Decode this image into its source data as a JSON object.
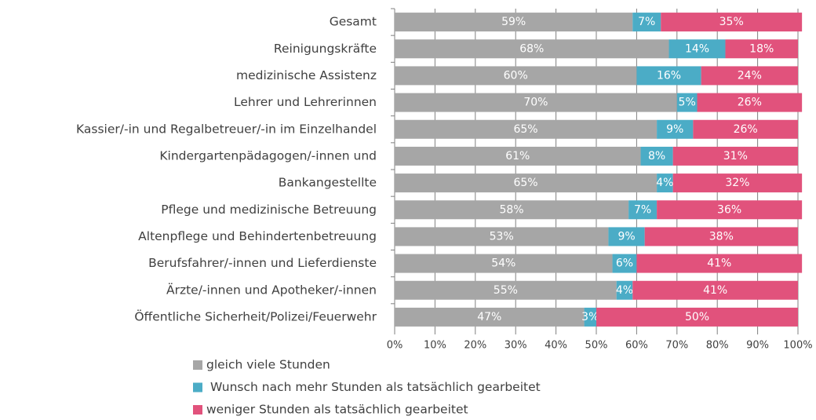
{
  "chart_data": {
    "type": "stacked_barh",
    "categories": [
      "Gesamt",
      "Reinigungskräfte",
      "medizinische Assistenz",
      "Lehrer und Lehrerinnen",
      "Kassier/-in und Regalbetreuer/-in im Einzelhandel",
      "Kindergartenpädagogen/-innen und",
      "Bankangestellte",
      "Pflege und medizinische Betreuung",
      "Altenpflege und Behindertenbetreuung",
      "Berufsfahrer/-innen und Lieferdienste",
      "Ärzte/-innen und Apotheker/-innen",
      "Öffentliche Sicherheit/Polizei/Feuerwehr"
    ],
    "series": [
      {
        "name": "gleich viele Stunden",
        "color": "#a6a6a6",
        "values": [
          59,
          68,
          60,
          70,
          65,
          61,
          65,
          58,
          53,
          54,
          55,
          47
        ],
        "value_labels": [
          "59%",
          "68%",
          "60%",
          "70%",
          "65%",
          "61%",
          "65%",
          "58%",
          "53%",
          "54%",
          "55%",
          "47%"
        ]
      },
      {
        "name": "Wunsch nach mehr Stunden als tatsächlich gearbeitet",
        "color": "#4bacc6",
        "values": [
          7,
          14,
          16,
          5,
          9,
          8,
          4,
          7,
          9,
          6,
          4,
          3
        ],
        "value_labels": [
          "7%",
          "14%",
          "16%",
          "5%",
          "9%",
          "8%",
          "4%",
          "7%",
          "9%",
          "6%",
          "4%",
          "3%"
        ]
      },
      {
        "name": "weniger Stunden als tatsächlich gearbeitet",
        "color": "#e1527c",
        "values": [
          35,
          18,
          24,
          26,
          26,
          31,
          32,
          36,
          38,
          41,
          41,
          50
        ],
        "value_labels": [
          "35%",
          "18%",
          "24%",
          "26%",
          "26%",
          "31%",
          "32%",
          "36%",
          "38%",
          "41%",
          "41%",
          "50%"
        ]
      }
    ],
    "xlim": [
      0,
      100
    ],
    "xticks": [
      {
        "value": 0,
        "label": "0%"
      },
      {
        "value": 10,
        "label": "10%"
      },
      {
        "value": 20,
        "label": "20%"
      },
      {
        "value": 30,
        "label": "30%"
      },
      {
        "value": 40,
        "label": "40%"
      },
      {
        "value": 50,
        "label": "50%"
      },
      {
        "value": 60,
        "label": "60%"
      },
      {
        "value": 70,
        "label": "70%"
      },
      {
        "value": 80,
        "label": "80%"
      },
      {
        "value": 90,
        "label": "90%"
      },
      {
        "value": 100,
        "label": "100%"
      }
    ],
    "grid": true,
    "legend": "bottom"
  }
}
